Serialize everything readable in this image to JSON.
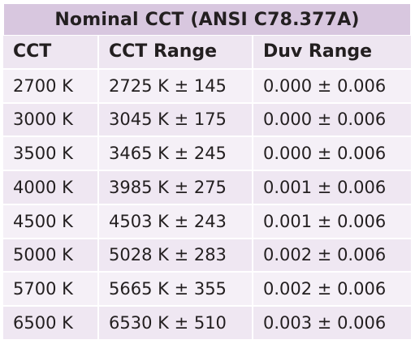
{
  "table": {
    "title": "Nominal CCT (ANSI C78.377A)",
    "headers": [
      "CCT",
      "CCT Range",
      "Duv Range"
    ],
    "rows": [
      [
        "2700 K",
        "2725 K ± 145",
        "0.000 ± 0.006"
      ],
      [
        "3000 K",
        "3045 K ± 175",
        "0.000 ± 0.006"
      ],
      [
        "3500 K",
        "3465 K ± 245",
        "0.000 ± 0.006"
      ],
      [
        "4000 K",
        "3985 K ± 275",
        "0.001 ± 0.006"
      ],
      [
        "4500 K",
        "4503 K ± 243",
        "0.001 ± 0.006"
      ],
      [
        "5000 K",
        "5028 K ± 283",
        "0.002 ± 0.006"
      ],
      [
        "5700 K",
        "5665 K ± 355",
        "0.002 ± 0.006"
      ],
      [
        "6500 K",
        "6530 K ± 510",
        "0.003 ± 0.006"
      ]
    ]
  },
  "colors": {
    "title_bg": "#d8c7df",
    "header_bg": "#eee6f1",
    "row_bg_a": "#f5f0f7",
    "row_bg_b": "#efe7f2",
    "text": "#231f20"
  }
}
